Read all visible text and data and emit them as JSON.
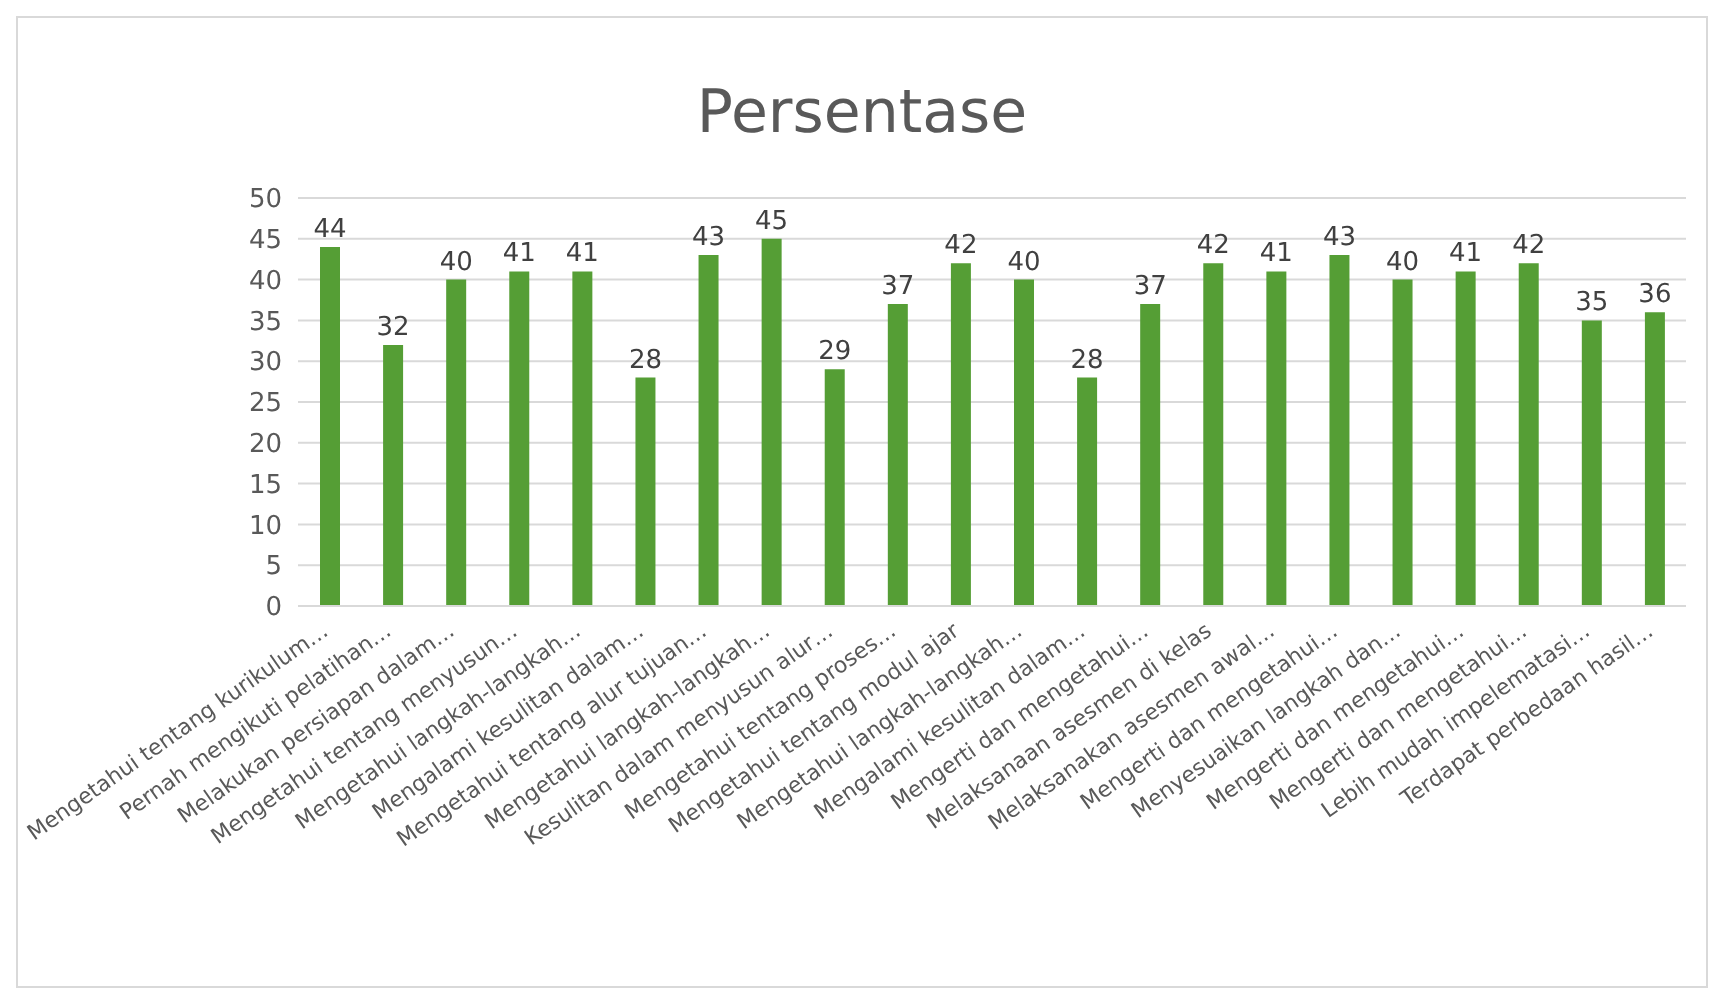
{
  "chart_data": {
    "type": "bar",
    "title": "Persentase",
    "categories": [
      "Mengetahui tentang kurikulum…",
      "Pernah mengikuti pelatihan…",
      "Melakukan persiapan dalam…",
      "Mengetahui tentang menyusun…",
      "Mengetahui langkah-langkah…",
      "Mengalami kesulitan dalam…",
      "Mengetahui tentang alur tujuan…",
      "Mengetahui langkah-langkah…",
      "Kesulitan dalam menyusun alur…",
      "Mengetahui tentang proses…",
      "Mengetahui tentang modul ajar",
      "Mengetahui langkah-langkah…",
      "Mengalami kesulitan dalam…",
      "Mengerti dan mengetahui…",
      "Melaksanaan asesmen di kelas",
      "Melaksanakan asesmen awal…",
      "Mengerti dan mengetahui…",
      "Menyesuaikan langkah dan…",
      "Mengerti dan mengetahui…",
      "Mengerti dan mengetahui…",
      "Lebih mudah impelematasi…",
      "Terdapat perbedaan hasil…"
    ],
    "values": [
      44,
      32,
      40,
      41,
      41,
      28,
      43,
      45,
      29,
      37,
      42,
      40,
      28,
      37,
      42,
      41,
      43,
      40,
      41,
      42,
      35,
      36
    ],
    "color": "#559e35",
    "ylim": [
      0,
      50
    ],
    "yticks": [
      0,
      5,
      10,
      15,
      20,
      25,
      30,
      35,
      40,
      45,
      50
    ],
    "grid": "y",
    "data_labels": true
  }
}
